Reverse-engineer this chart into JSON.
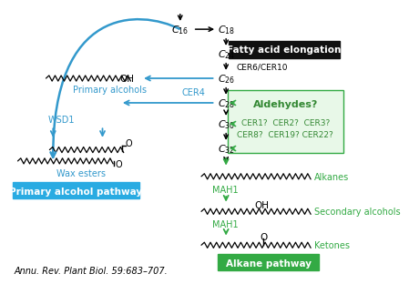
{
  "bg_color": "#ffffff",
  "black": "#000000",
  "blue": "#3399cc",
  "green": "#33aa44",
  "dark_green": "#338833",
  "light_green_bg": "#e8f8e8",
  "cyan_bg": "#29abe2",
  "black_bg": "#111111",
  "citation": "Annu. Rev. Plant Biol. 59:683–707.",
  "fatty_acid_label": "Fatty acid elongation",
  "primary_pathway_label": "Primary alcohol pathway",
  "alkane_pathway_label": "Alkane pathway",
  "aldehydes_label": "Aldehydes?",
  "cer_list_1": "CER1?  CER2?  CER3?",
  "cer_list_2": "CER8?  CER19? CER22?",
  "primary_alcohols": "Primary alcohols",
  "wax_esters": "Wax esters",
  "alkanes": "Alkanes",
  "secondary_alcohols": "Secondary alcohols",
  "ketones": "Ketones",
  "wsd1": "WSD1",
  "cer4": "CER4",
  "mah1_1": "MAH1",
  "mah1_2": "MAH1",
  "cer6_cer10": "CER6/CER10",
  "c16": "$C_{16}$",
  "c18": "$C_{18}$",
  "c24": "$C_{24}$",
  "c26": "$C_{26}$",
  "c28": "$C_{28}$",
  "c30": "$C_{30}$",
  "c32": "$C_{32}$"
}
